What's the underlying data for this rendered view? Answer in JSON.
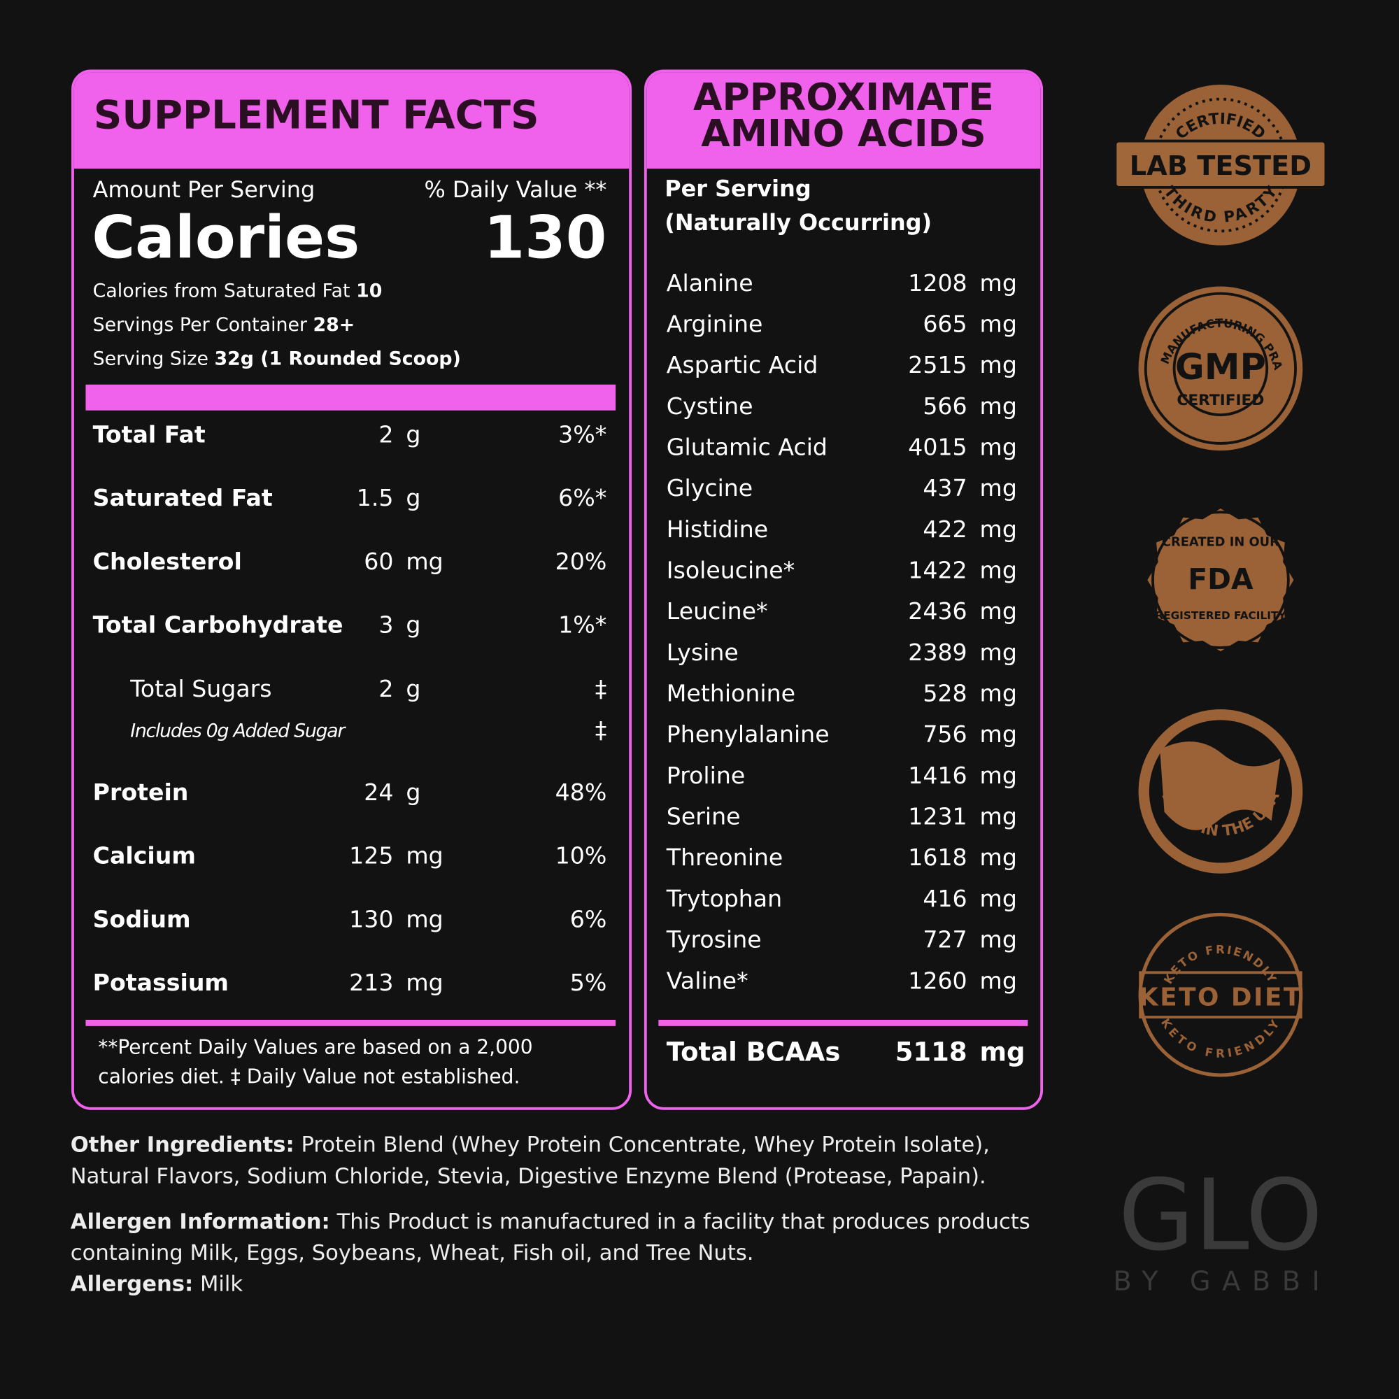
{
  "supplement_facts": {
    "title": "SUPPLEMENT FACTS",
    "amount_per_serving": "Amount Per Serving",
    "daily_value_header": "% Daily Value **",
    "calories_label": "Calories",
    "calories_value": "130",
    "details": [
      {
        "label": "Calories from Saturated Fat",
        "value": "10"
      },
      {
        "label": "Servings Per Container",
        "value": "28+"
      },
      {
        "label": "Serving Size",
        "value": "32g (1 Rounded Scoop)"
      }
    ],
    "nutrients": [
      {
        "name": "Total Fat",
        "amount": "2",
        "unit": "g",
        "daily_value": "3%*"
      },
      {
        "name": "Saturated Fat",
        "amount": "1.5",
        "unit": "g",
        "daily_value": "6%*"
      },
      {
        "name": "Cholesterol",
        "amount": "60",
        "unit": "mg",
        "daily_value": "20%"
      },
      {
        "name": "Total Carbohydrate",
        "amount": "3",
        "unit": "g",
        "daily_value": "1%*",
        "sub": [
          {
            "name": "Total Sugars",
            "amount": "2",
            "unit": "g",
            "daily_value": "‡"
          },
          {
            "name": "Includes 0g Added Sugar",
            "daily_value": "‡"
          }
        ]
      },
      {
        "name": "Protein",
        "amount": "24",
        "unit": "g",
        "daily_value": "48%"
      },
      {
        "name": "Calcium",
        "amount": "125",
        "unit": "mg",
        "daily_value": "10%"
      },
      {
        "name": "Sodium",
        "amount": "130",
        "unit": "mg",
        "daily_value": "6%"
      },
      {
        "name": "Potassium",
        "amount": "213",
        "unit": "mg",
        "daily_value": "5%"
      }
    ],
    "footnote": "**Percent Daily Values are based on a 2,000 calories diet. ‡ Daily Value not established."
  },
  "amino_acids": {
    "title_lines": [
      "APPROXIMATE",
      "AMINO ACIDS"
    ],
    "subtitle_lines": [
      "Per Serving",
      "(Naturally Occurring)"
    ],
    "acids": [
      {
        "name": "Alanine",
        "amount": "1208",
        "unit": "mg"
      },
      {
        "name": "Arginine",
        "amount": "665",
        "unit": "mg"
      },
      {
        "name": "Aspartic Acid",
        "amount": "2515",
        "unit": "mg"
      },
      {
        "name": "Cystine",
        "amount": "566",
        "unit": "mg"
      },
      {
        "name": "Glutamic Acid",
        "amount": "4015",
        "unit": "mg"
      },
      {
        "name": "Glycine",
        "amount": "437",
        "unit": "mg"
      },
      {
        "name": "Histidine",
        "amount": "422",
        "unit": "mg"
      },
      {
        "name": "Isoleucine*",
        "amount": "1422",
        "unit": "mg"
      },
      {
        "name": "Leucine*",
        "amount": "2436",
        "unit": "mg"
      },
      {
        "name": "Lysine",
        "amount": "2389",
        "unit": "mg"
      },
      {
        "name": "Methionine",
        "amount": "528",
        "unit": "mg"
      },
      {
        "name": "Phenylalanine",
        "amount": "756",
        "unit": "mg"
      },
      {
        "name": "Proline",
        "amount": "1416",
        "unit": "mg"
      },
      {
        "name": "Serine",
        "amount": "1231",
        "unit": "mg"
      },
      {
        "name": "Threonine",
        "amount": "1618",
        "unit": "mg"
      },
      {
        "name": "Trytophan",
        "amount": "416",
        "unit": "mg"
      },
      {
        "name": "Tyrosine",
        "amount": "727",
        "unit": "mg"
      },
      {
        "name": "Valine*",
        "amount": "1260",
        "unit": "mg"
      }
    ],
    "total": {
      "name": "Total BCAAs",
      "amount": "5118",
      "unit": "mg"
    }
  },
  "other_ingredients": {
    "label": "Other Ingredients:",
    "text": "Protein Blend (Whey Protein Concentrate, Whey Protein Isolate), Natural Flavors, Sodium Chloride, Stevia, Digestive Enzyme Blend (Protease, Papain)."
  },
  "allergen_information": {
    "label": "Allergen Information:",
    "text": "This Product is manufactured in a facility that produces products containing Milk, Eggs, Soybeans, Wheat, Fish oil, and Tree Nuts."
  },
  "allergens": {
    "label": "Allergens:",
    "text": "Milk"
  },
  "badges": [
    {
      "top": "CERTIFIED",
      "main": "LAB TESTED",
      "bottom": "THIRD PARTY"
    },
    {
      "top": "GOOD MANUFACTURING PRACTICE",
      "main": "GMP",
      "bottom": "CERTIFIED"
    },
    {
      "top": "CREATED IN OUR",
      "main": "FDA",
      "bottom": "REGISTERED FACILITY"
    },
    {
      "bottom": "MADE IN THE USA"
    },
    {
      "top": "KETO FRIENDLY",
      "main": "KETO DIET",
      "bottom": "KETO FRIENDLY"
    }
  ],
  "logo": {
    "name": "GLO",
    "tagline": "BY GABBI"
  }
}
